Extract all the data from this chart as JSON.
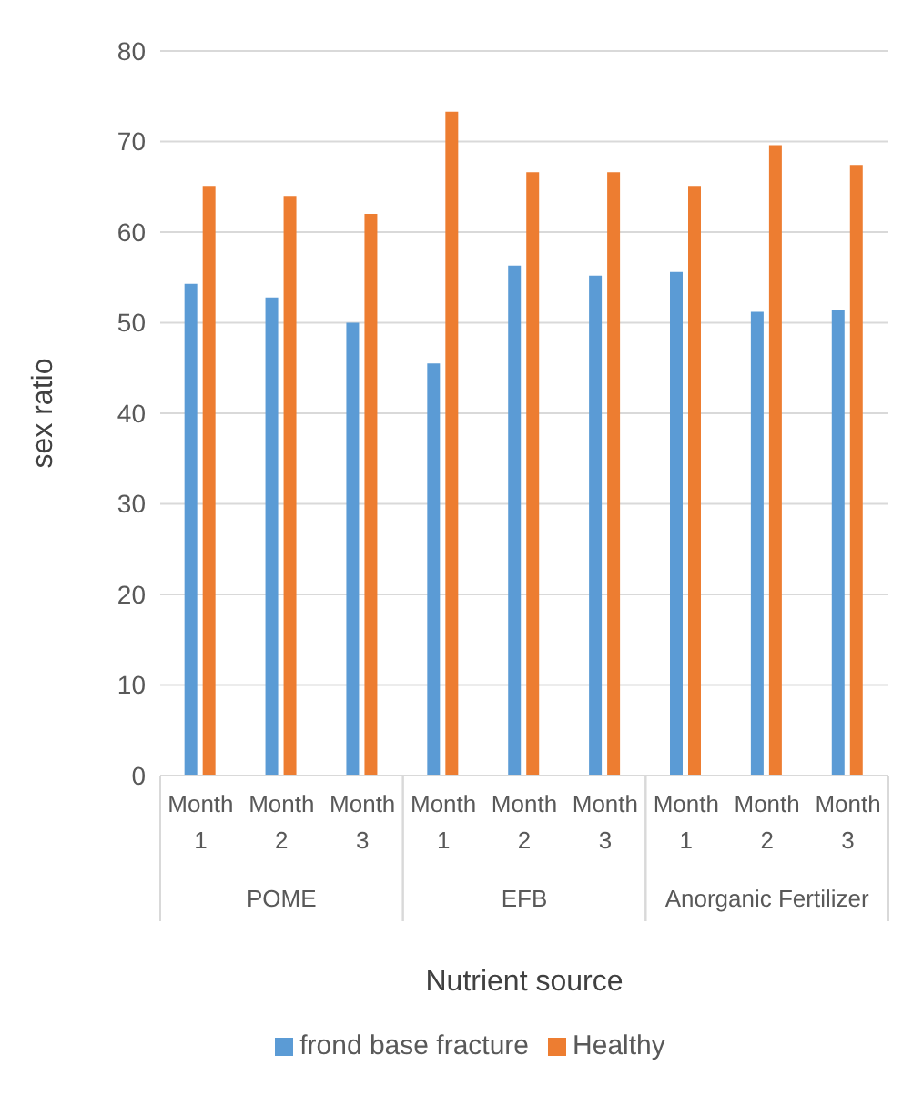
{
  "chart_data": {
    "type": "bar",
    "xlabel": "Nutrient source",
    "ylabel": "sex ratio",
    "categories": [
      "Month 1",
      "Month 2",
      "Month 3",
      "Month 1",
      "Month 2",
      "Month 3",
      "Month 1",
      "Month 2",
      "Month 3"
    ],
    "series": [
      {
        "name": "frond base fracture",
        "color": "#5b9bd5",
        "values": [
          54.3,
          52.8,
          50,
          45.5,
          56.3,
          55.2,
          55.6,
          51.2,
          51.4
        ]
      },
      {
        "name": "Healthy",
        "color": "#ed7d31",
        "values": [
          65.1,
          64,
          62,
          73.3,
          66.6,
          66.6,
          65.1,
          69.6,
          67.4
        ]
      }
    ],
    "annotations": [
      "POME",
      "EFB",
      "Anorganic Fertilizer"
    ],
    "ylim": [
      0,
      80
    ],
    "yticks": [
      0,
      10,
      20,
      30,
      40,
      50,
      60,
      70,
      80
    ],
    "grid": "y",
    "legend": "bottom"
  }
}
